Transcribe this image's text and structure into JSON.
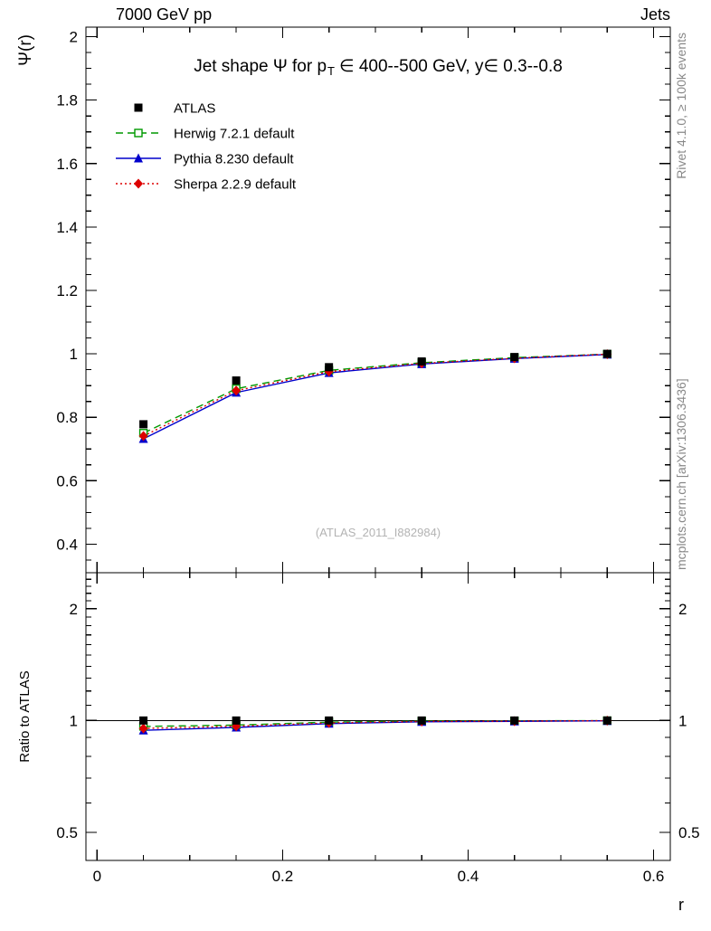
{
  "header": {
    "left": "7000 GeV pp",
    "right": "Jets"
  },
  "title": {
    "part1": "Jet shape Ψ for p",
    "sub": "T",
    "part2": "∈ 400--500 GeV, y∈ 0.3--0.8"
  },
  "watermark": "(ATLAS_2011_I882984)",
  "side": {
    "rivet": "Rivet 4.1.0, ≥ 100k events",
    "mcplots": "mcplots.cern.ch [arXiv:1306.3436]"
  },
  "chart_data": {
    "type": "line",
    "title": "Jet shape Ψ for p_T ∈ 400--500 GeV, y∈ 0.3--0.8",
    "x": [
      0.05,
      0.15,
      0.25,
      0.35,
      0.45,
      0.55
    ],
    "series": [
      {
        "name": "ATLAS",
        "color": "#000000",
        "marker": "square-filled",
        "line": "none",
        "values": [
          0.778,
          0.916,
          0.958,
          0.976,
          0.99,
          1.0
        ],
        "ratio": [
          1,
          1,
          1,
          1,
          1,
          1
        ]
      },
      {
        "name": "Herwig 7.2.1 default",
        "color": "#009900",
        "marker": "square-open",
        "line": "dashed",
        "values": [
          0.75,
          0.89,
          0.948,
          0.972,
          0.988,
          0.999
        ],
        "ratio": [
          0.964,
          0.972,
          0.99,
          0.996,
          0.998,
          0.999
        ]
      },
      {
        "name": "Pythia 8.230 default",
        "color": "#0000cc",
        "marker": "triangle-filled",
        "line": "solid",
        "values": [
          0.732,
          0.878,
          0.94,
          0.968,
          0.985,
          0.998
        ],
        "ratio": [
          0.941,
          0.958,
          0.981,
          0.992,
          0.995,
          0.998
        ]
      },
      {
        "name": "Sherpa 2.2.9 default",
        "color": "#dd0000",
        "marker": "diamond-filled",
        "line": "dotted",
        "values": [
          0.741,
          0.884,
          0.944,
          0.97,
          0.986,
          0.999
        ],
        "ratio": [
          0.952,
          0.965,
          0.985,
          0.994,
          0.996,
          0.999
        ]
      }
    ],
    "axes": {
      "x": {
        "label": "r",
        "min": -0.012,
        "max": 0.618,
        "minor_step": 0.05,
        "major": [
          {
            "v": 0,
            "t": "0"
          },
          {
            "v": 0.2,
            "t": "0.2"
          },
          {
            "v": 0.4,
            "t": "0.4"
          },
          {
            "v": 0.6,
            "t": "0.6"
          }
        ]
      },
      "y_main": {
        "label": "Ψ(r)",
        "scale": "linear",
        "min": 0.31,
        "max": 2.03,
        "minor_step": 0.05,
        "major": [
          {
            "v": 0.4,
            "t": "0.4"
          },
          {
            "v": 0.6,
            "t": "0.6"
          },
          {
            "v": 0.8,
            "t": "0.8"
          },
          {
            "v": 1,
            "t": "1"
          },
          {
            "v": 1.2,
            "t": "1.2"
          },
          {
            "v": 1.4,
            "t": "1.4"
          },
          {
            "v": 1.6,
            "t": "1.6"
          },
          {
            "v": 1.8,
            "t": "1.8"
          },
          {
            "v": 2,
            "t": "2"
          }
        ]
      },
      "y_ratio": {
        "label": "Ratio to ATLAS",
        "scale": "log",
        "min": 0.42,
        "max": 2.5,
        "major": [
          {
            "v": 0.5,
            "t": "0.5"
          },
          {
            "v": 1,
            "t": "1"
          },
          {
            "v": 2,
            "t": "2"
          }
        ],
        "minor": [
          0.6,
          0.7,
          0.8,
          0.9,
          1.1,
          1.2,
          1.3,
          1.4,
          1.5,
          1.6,
          1.7,
          1.8,
          1.9,
          2.1,
          2.2,
          2.3,
          2.4
        ]
      }
    },
    "legend_position": "top-left",
    "grid": false
  }
}
